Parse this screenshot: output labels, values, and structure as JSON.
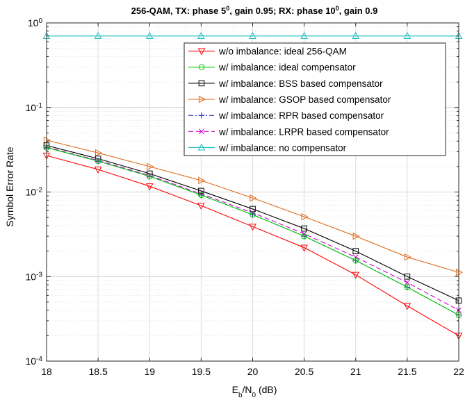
{
  "chart_data": {
    "type": "line",
    "title": "256-QAM,  TX: phase 5⁰, gain 0.95;  RX: phase 10⁰, gain 0.9",
    "title_parts": {
      "p1": "256-QAM,  TX: phase 5",
      "p1sup": "0",
      "p2": ", gain 0.95;  RX: phase 10",
      "p2sup": "0",
      "p3": ", gain 0.9"
    },
    "xlabel": "E_b/N_0 (dB)",
    "xlabel_parts": {
      "e": "E",
      "esub": "b",
      "slash": "/N",
      "nsub": "0",
      "unit": " (dB)"
    },
    "ylabel": "Symbol Error Rate",
    "y_scale": "log",
    "xlim": [
      18,
      22
    ],
    "ylim": [
      0.0001,
      1
    ],
    "grid": true,
    "legend_position": "top-right",
    "x_ticks": [
      "18",
      "18.5",
      "19",
      "19.5",
      "20",
      "20.5",
      "21",
      "21.5",
      "22"
    ],
    "y_tick_labels": [
      {
        "base": "10",
        "exp": "0"
      },
      {
        "base": "10",
        "exp": "-1"
      },
      {
        "base": "10",
        "exp": "-2"
      },
      {
        "base": "10",
        "exp": "-3"
      },
      {
        "base": "10",
        "exp": "-4"
      }
    ],
    "x": [
      18,
      18.5,
      19,
      19.5,
      20,
      20.5,
      21,
      21.5,
      22
    ],
    "series": [
      {
        "name": "w/o imbalance: ideal 256-QAM",
        "color": "#ff0000",
        "marker": "triangle-down",
        "dash": "solid",
        "values": [
          0.027,
          0.0185,
          0.0117,
          0.0069,
          0.0039,
          0.0022,
          0.00105,
          0.00045,
          0.0002
        ]
      },
      {
        "name": "w/ imbalance: ideal compensator",
        "color": "#00cc00",
        "marker": "circle",
        "dash": "solid",
        "values": [
          0.0335,
          0.0232,
          0.0153,
          0.0092,
          0.0054,
          0.003,
          0.00155,
          0.00075,
          0.00035
        ]
      },
      {
        "name": "w/ imbalance: BSS based compensator",
        "color": "#000000",
        "marker": "square",
        "dash": "solid",
        "values": [
          0.0355,
          0.0248,
          0.0165,
          0.0103,
          0.0063,
          0.0037,
          0.002,
          0.001,
          0.00052
        ]
      },
      {
        "name": "w/ imbalance: GSOP based compensator",
        "color": "#e06a1b",
        "marker": "triangle-right",
        "dash": "solid",
        "values": [
          0.041,
          0.029,
          0.02,
          0.0137,
          0.0085,
          0.0051,
          0.003,
          0.0017,
          0.00112
        ]
      },
      {
        "name": "w/ imbalance: RPR based compensator",
        "color": "#1f1fcc",
        "marker": "plus",
        "dash": "dashdot",
        "values": [
          0.0335,
          0.0232,
          0.0153,
          0.0092,
          0.0054,
          0.003,
          0.00155,
          0.00075,
          0.00035
        ]
      },
      {
        "name": "w/ imbalance: LRPR based compensator",
        "color": "#cc00cc",
        "marker": "x",
        "dash": "dashed",
        "values": [
          0.034,
          0.0236,
          0.0157,
          0.0095,
          0.0057,
          0.0032,
          0.0017,
          0.00085,
          0.0004
        ]
      },
      {
        "name": "w/ imbalance: no compensator",
        "color": "#1fbfbf",
        "marker": "triangle-up",
        "dash": "solid",
        "values": [
          0.7,
          0.7,
          0.7,
          0.7,
          0.7,
          0.7,
          0.7,
          0.7,
          0.7
        ]
      }
    ]
  }
}
